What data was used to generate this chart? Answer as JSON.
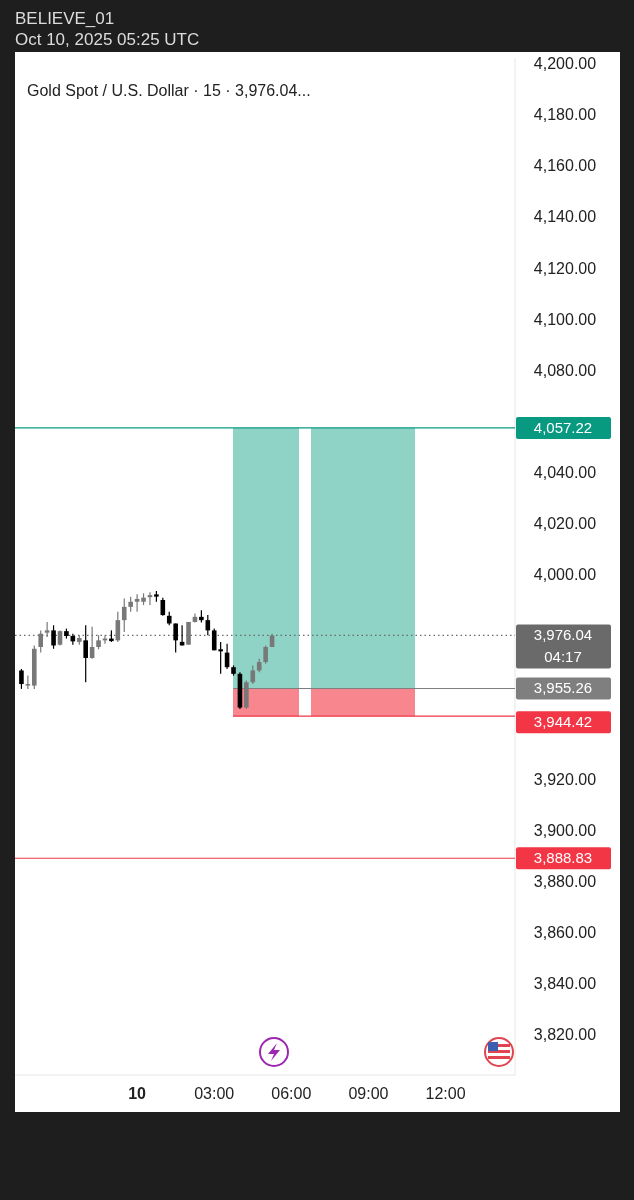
{
  "chart_data": {
    "type": "candlestick",
    "title": "Gold Spot / U.S. Dollar · 15 · 3,976.04...",
    "annotations": [
      "BELIEVE_01",
      "Oct 10, 2025 05:25 UTC",
      "04:17"
    ],
    "x": [
      "2025-10-09T19:30",
      "2025-10-09T19:45",
      "2025-10-09T20:00",
      "2025-10-09T20:15",
      "2025-10-09T20:30",
      "2025-10-09T20:45",
      "2025-10-09T21:00",
      "2025-10-09T21:15",
      "2025-10-09T21:30",
      "2025-10-09T21:45",
      "2025-10-09T22:00",
      "2025-10-09T22:15",
      "2025-10-09T22:30",
      "2025-10-09T22:45",
      "2025-10-09T23:00",
      "2025-10-09T23:15",
      "2025-10-09T23:30",
      "2025-10-09T23:45",
      "2025-10-10T00:00",
      "2025-10-10T00:15",
      "2025-10-10T00:30",
      "2025-10-10T00:45",
      "2025-10-10T01:00",
      "2025-10-10T01:15",
      "2025-10-10T01:30",
      "2025-10-10T01:45",
      "2025-10-10T02:00",
      "2025-10-10T02:15",
      "2025-10-10T02:30",
      "2025-10-10T02:45",
      "2025-10-10T03:00",
      "2025-10-10T03:15",
      "2025-10-10T03:30",
      "2025-10-10T03:45",
      "2025-10-10T04:00",
      "2025-10-10T04:15",
      "2025-10-10T04:30",
      "2025-10-10T04:45",
      "2025-10-10T05:00",
      "2025-10-10T05:15"
    ],
    "ohlc": [
      [
        3962.3,
        3962.9,
        3955.1,
        3957.0
      ],
      [
        3956.4,
        3960.3,
        3955.1,
        3957.0
      ],
      [
        3956.4,
        3972.1,
        3955.1,
        3970.8
      ],
      [
        3971.5,
        3978.0,
        3969.3,
        3976.7
      ],
      [
        3977.1,
        3981.3,
        3975.4,
        3978.0
      ],
      [
        3978.0,
        3980.0,
        3970.8,
        3972.1
      ],
      [
        3972.4,
        3978.0,
        3972.1,
        3977.7
      ],
      [
        3977.7,
        3978.7,
        3974.8,
        3975.8
      ],
      [
        3975.8,
        3976.7,
        3972.4,
        3973.7
      ],
      [
        3973.5,
        3976.1,
        3972.4,
        3975.0
      ],
      [
        3974.1,
        3980.0,
        3957.7,
        3967.2
      ],
      [
        3967.2,
        3979.4,
        3966.9,
        3971.5
      ],
      [
        3971.5,
        3976.1,
        3970.6,
        3974.1
      ],
      [
        3974.1,
        3976.1,
        3972.8,
        3974.8
      ],
      [
        3974.8,
        3978.0,
        3973.5,
        3973.8
      ],
      [
        3974.1,
        3985.3,
        3973.5,
        3982.0
      ],
      [
        3982.0,
        3990.5,
        3977.4,
        3987.2
      ],
      [
        3987.2,
        3991.2,
        3985.3,
        3989.2
      ],
      [
        3989.2,
        3992.1,
        3985.3,
        3990.3
      ],
      [
        3989.2,
        3992.5,
        3987.9,
        3990.8
      ],
      [
        3991.0,
        3992.9,
        3987.9,
        3991.8
      ],
      [
        3992.1,
        3993.4,
        3989.2,
        3991.2
      ],
      [
        3989.9,
        3990.8,
        3983.7,
        3984.0
      ],
      [
        3983.7,
        3985.3,
        3980.0,
        3980.7
      ],
      [
        3980.7,
        3980.7,
        3969.3,
        3974.1
      ],
      [
        3973.5,
        3980.0,
        3972.1,
        3972.1
      ],
      [
        3972.4,
        3981.3,
        3972.4,
        3981.3
      ],
      [
        3981.3,
        3984.6,
        3981.1,
        3983.3
      ],
      [
        3983.3,
        3985.9,
        3981.1,
        3982.0
      ],
      [
        3982.0,
        3984.0,
        3976.1,
        3978.0
      ],
      [
        3978.0,
        3978.7,
        3970.2,
        3970.2
      ],
      [
        3970.6,
        3973.5,
        3961.0,
        3969.8
      ],
      [
        3969.3,
        3972.8,
        3962.9,
        3963.6
      ],
      [
        3963.6,
        3964.3,
        3960.3,
        3961.0
      ],
      [
        3961.0,
        3961.6,
        3947.2,
        3947.8
      ],
      [
        3947.8,
        3958.4,
        3947.2,
        3957.7
      ],
      [
        3957.7,
        3964.3,
        3957.0,
        3962.3
      ],
      [
        3962.3,
        3966.9,
        3961.6,
        3965.6
      ],
      [
        3965.6,
        3972.1,
        3964.9,
        3971.5
      ],
      [
        3971.5,
        3976.7,
        3971.5,
        3976.0
      ]
    ],
    "colors": [
      "#000000",
      "#787878",
      "#787878",
      "#787878",
      "#787878",
      "#000000",
      "#787878",
      "#000000",
      "#000000",
      "#787878",
      "#000000",
      "#787878",
      "#787878",
      "#787878",
      "#000000",
      "#787878",
      "#787878",
      "#787878",
      "#787878",
      "#787878",
      "#787878",
      "#000000",
      "#000000",
      "#000000",
      "#000000",
      "#000000",
      "#787878",
      "#787878",
      "#000000",
      "#000000",
      "#000000",
      "#000000",
      "#000000",
      "#000000",
      "#000000",
      "#787878",
      "#787878",
      "#787878",
      "#787878",
      "#787878"
    ],
    "xlim": [
      "2025-10-09T19:15",
      "2025-10-10T14:42"
    ],
    "xticks": [
      {
        "value": "2025-10-10T00:00",
        "label": "10"
      },
      {
        "value": "2025-10-10T03:00",
        "label": "03:00"
      },
      {
        "value": "2025-10-10T06:00",
        "label": "06:00"
      },
      {
        "value": "2025-10-10T09:00",
        "label": "09:00"
      },
      {
        "value": "2025-10-10T12:00",
        "label": "12:00"
      }
    ],
    "ylim": [
      3804,
      4202
    ],
    "yticks": [
      {
        "value": 3820,
        "label": "3,820.00"
      },
      {
        "value": 3840,
        "label": "3,840.00"
      },
      {
        "value": 3860,
        "label": "3,860.00"
      },
      {
        "value": 3880,
        "label": "3,880.00"
      },
      {
        "value": 3900,
        "label": "3,900.00"
      },
      {
        "value": 3920,
        "label": "3,920.00"
      },
      {
        "value": 4000,
        "label": "4,000.00"
      },
      {
        "value": 4020,
        "label": "4,020.00"
      },
      {
        "value": 4040,
        "label": "4,040.00"
      },
      {
        "value": 4080,
        "label": "4,080.00"
      },
      {
        "value": 4100,
        "label": "4,100.00"
      },
      {
        "value": 4120,
        "label": "4,120.00"
      },
      {
        "value": 4140,
        "label": "4,140.00"
      },
      {
        "value": 4160,
        "label": "4,160.00"
      },
      {
        "value": 4180,
        "label": "4,180.00"
      },
      {
        "value": 4200,
        "label": "4,200.00"
      }
    ],
    "ref_lines": [
      {
        "axis": "y",
        "value": 4057.22,
        "label": "4,057.22",
        "color": "#089981",
        "line_style": "solid"
      },
      {
        "axis": "y",
        "value": 3888.83,
        "label": "3,888.83",
        "color": "#f23645",
        "line_style": "solid"
      },
      {
        "axis": "y",
        "value": 3976.04,
        "label": "3,976.04",
        "color": "#6a6a6a",
        "line_style": "dotted"
      },
      {
        "axis": "y",
        "value": 3955.26,
        "label": "3,955.26",
        "color": "#7f7f7f",
        "line_style": "solid"
      },
      {
        "axis": "y",
        "value": 3944.42,
        "label": "3,944.42",
        "color": "#f23645",
        "line_style": "solid"
      }
    ],
    "grid": false
  }
}
